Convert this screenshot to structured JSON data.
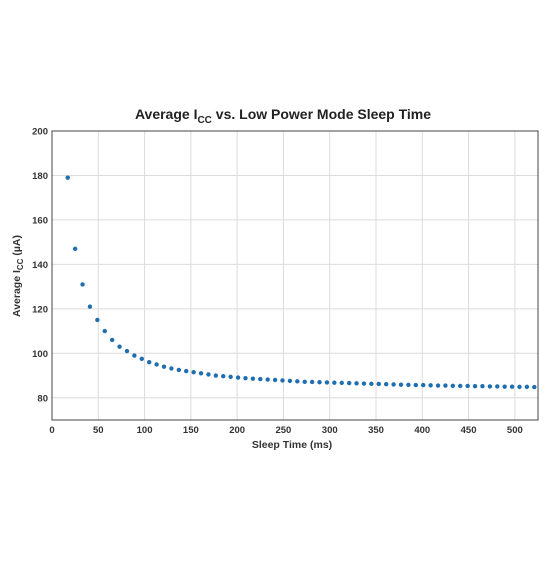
{
  "chart_data": {
    "type": "scatter",
    "title": "Average ICC vs. Low Power Mode Sleep Time",
    "title_parts": {
      "pre": "Average I",
      "sub": "CC",
      "post": " vs. Low Power Mode Sleep Time"
    },
    "xlabel": "Sleep Time (ms)",
    "ylabel": "Average ICC (µA)",
    "ylabel_parts": {
      "pre": "Average I",
      "sub": "CC",
      "post": " (µA)"
    },
    "xlim": [
      0,
      525
    ],
    "ylim": [
      70,
      200
    ],
    "x_ticks": [
      0,
      50,
      100,
      150,
      200,
      250,
      300,
      350,
      400,
      450,
      500
    ],
    "y_ticks": [
      80,
      100,
      120,
      140,
      160,
      180,
      200
    ],
    "grid": true,
    "marker_color": "#1f6fb0",
    "series": [
      {
        "x": [
          17,
          25,
          33,
          41,
          49,
          57,
          65,
          73,
          81,
          89,
          97,
          105,
          113,
          121,
          129,
          137,
          145,
          153,
          161,
          169,
          177,
          185,
          193,
          201,
          209,
          217,
          225,
          233,
          241,
          249,
          257,
          265,
          273,
          281,
          289,
          297,
          305,
          313,
          321,
          329,
          337,
          345,
          353,
          361,
          369,
          377,
          385,
          393,
          401,
          409,
          417,
          425,
          433,
          441,
          449,
          457,
          465,
          473,
          481,
          489,
          497,
          505,
          513,
          521
        ],
        "y": [
          179,
          147,
          131,
          121,
          115,
          110,
          106,
          103,
          101,
          99,
          97.5,
          96,
          95,
          94,
          93.2,
          92.5,
          92,
          91.5,
          91,
          90.5,
          90,
          89.7,
          89.4,
          89.1,
          88.8,
          88.6,
          88.4,
          88.2,
          88,
          87.8,
          87.6,
          87.4,
          87.2,
          87.1,
          87,
          86.9,
          86.8,
          86.7,
          86.6,
          86.5,
          86.4,
          86.3,
          86.2,
          86.1,
          86,
          85.9,
          85.8,
          85.7,
          85.7,
          85.6,
          85.5,
          85.5,
          85.4,
          85.3,
          85.3,
          85.2,
          85.2,
          85.1,
          85.1,
          85,
          85,
          84.9,
          84.9,
          84.8
        ]
      }
    ]
  }
}
